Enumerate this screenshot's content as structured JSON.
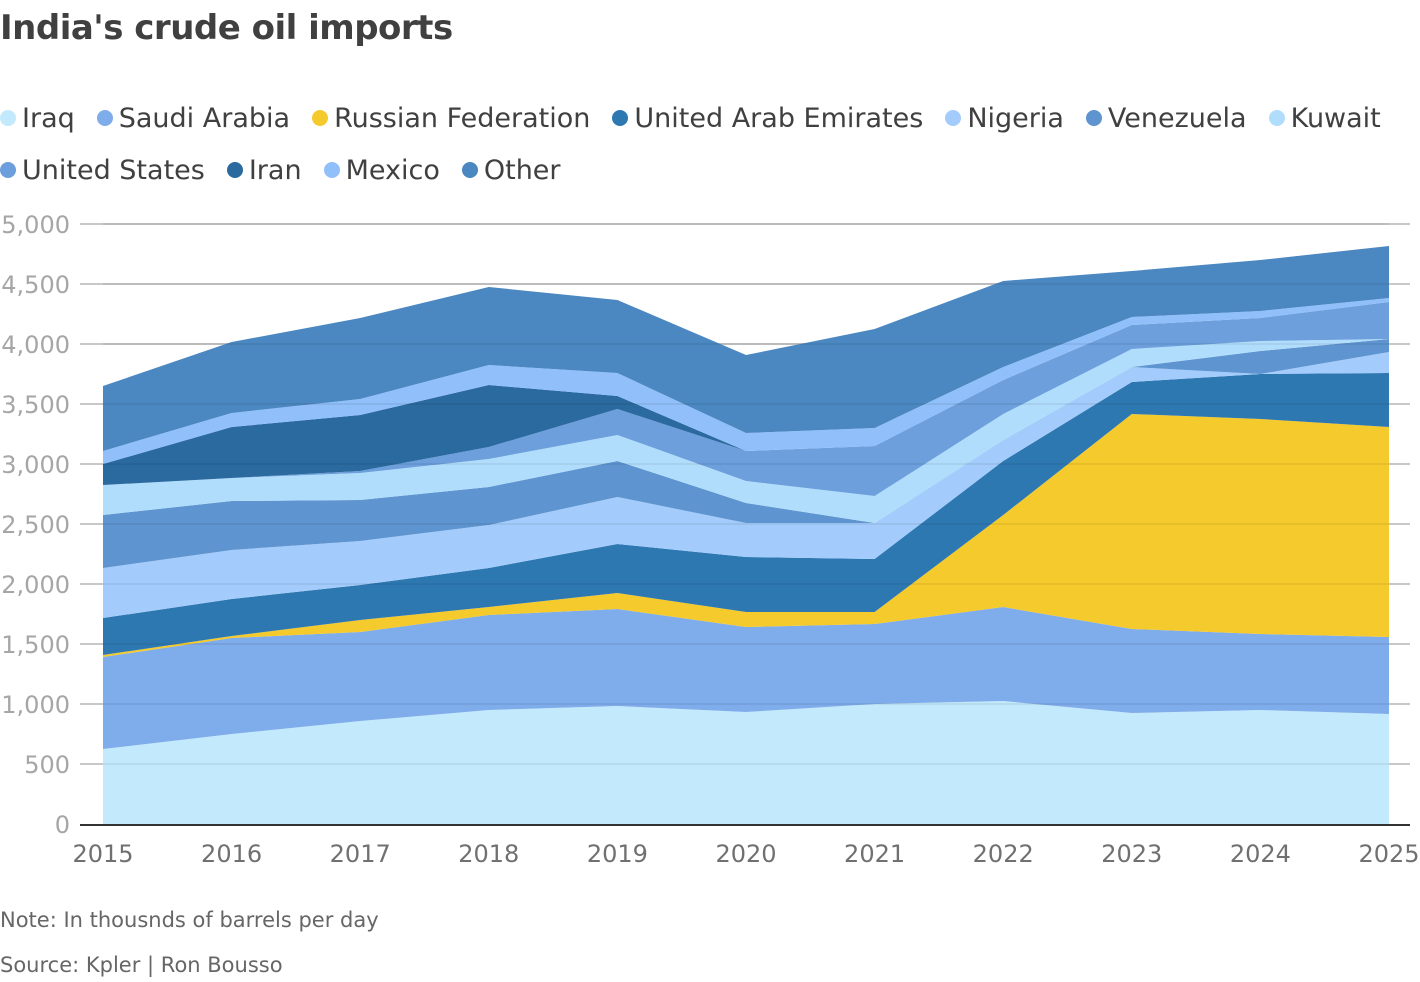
{
  "chart_data": {
    "type": "area",
    "stacked": true,
    "title": "India's crude oil imports",
    "xlabel": "",
    "ylabel": "",
    "x": [
      "2015",
      "2016",
      "2017",
      "2018",
      "2019",
      "2020",
      "2021",
      "2022",
      "2023",
      "2024",
      "2025"
    ],
    "ylim": [
      0,
      5000
    ],
    "yticks": [
      0,
      500,
      1000,
      1500,
      2000,
      2500,
      3000,
      3500,
      4000,
      4500,
      5000
    ],
    "ytick_labels": [
      "0",
      "500",
      "1,000",
      "1,500",
      "2,000",
      "2,500",
      "3,000",
      "3,500",
      "4,000",
      "4,500",
      "5,000"
    ],
    "grid": true,
    "legend_position": "top",
    "series": [
      {
        "name": "Iraq",
        "color": "#c2e9fc",
        "values": [
          625,
          750,
          858,
          950,
          983,
          933,
          1000,
          1025,
          925,
          950,
          917
        ]
      },
      {
        "name": "Saudi Arabia",
        "color": "#7facea",
        "values": [
          767,
          800,
          742,
          792,
          809,
          709,
          667,
          783,
          700,
          633,
          641
        ]
      },
      {
        "name": "Russian Federation",
        "color": "#f5ca2d",
        "values": [
          16,
          17,
          100,
          66,
          133,
          125,
          100,
          767,
          1792,
          1792,
          1750
        ]
      },
      {
        "name": "United Arab Emirates",
        "color": "#2e78b1",
        "values": [
          309,
          308,
          292,
          325,
          408,
          458,
          441,
          450,
          266,
          375,
          450
        ]
      },
      {
        "name": "Nigeria",
        "color": "#a3ccfc",
        "values": [
          416,
          408,
          366,
          359,
          392,
          283,
          300,
          175,
          125,
          0,
          175
        ]
      },
      {
        "name": "Venezuela",
        "color": "#5e94cf",
        "values": [
          442,
          409,
          342,
          316,
          300,
          167,
          0,
          0,
          0,
          192,
          109
        ]
      },
      {
        "name": "Kuwait",
        "color": "#b1ddfc",
        "values": [
          250,
          191,
          225,
          234,
          217,
          183,
          225,
          217,
          150,
          83,
          0
        ]
      },
      {
        "name": "United States",
        "color": "#6c9fdc",
        "values": [
          0,
          0,
          17,
          100,
          216,
          250,
          417,
          283,
          200,
          192,
          308
        ]
      },
      {
        "name": "Iran",
        "color": "#2b6a9f",
        "values": [
          175,
          425,
          466,
          516,
          109,
          0,
          0,
          0,
          0,
          0,
          0
        ]
      },
      {
        "name": "Mexico",
        "color": "#90bffa",
        "values": [
          108,
          117,
          134,
          167,
          191,
          150,
          150,
          108,
          67,
          58,
          33
        ]
      },
      {
        "name": "Other",
        "color": "#4b87c0",
        "values": [
          542,
          592,
          675,
          650,
          609,
          650,
          825,
          717,
          383,
          425,
          434
        ]
      }
    ],
    "annotations": []
  },
  "header": {
    "title": "India's crude oil imports"
  },
  "legend": {
    "rows": [
      [
        0,
        1,
        2,
        3,
        4,
        5,
        6
      ],
      [
        7,
        8,
        9,
        10
      ]
    ]
  },
  "footer": {
    "note": "Note: In thousnds of barrels per day",
    "source": "Source: Kpler | Ron Bousso"
  }
}
